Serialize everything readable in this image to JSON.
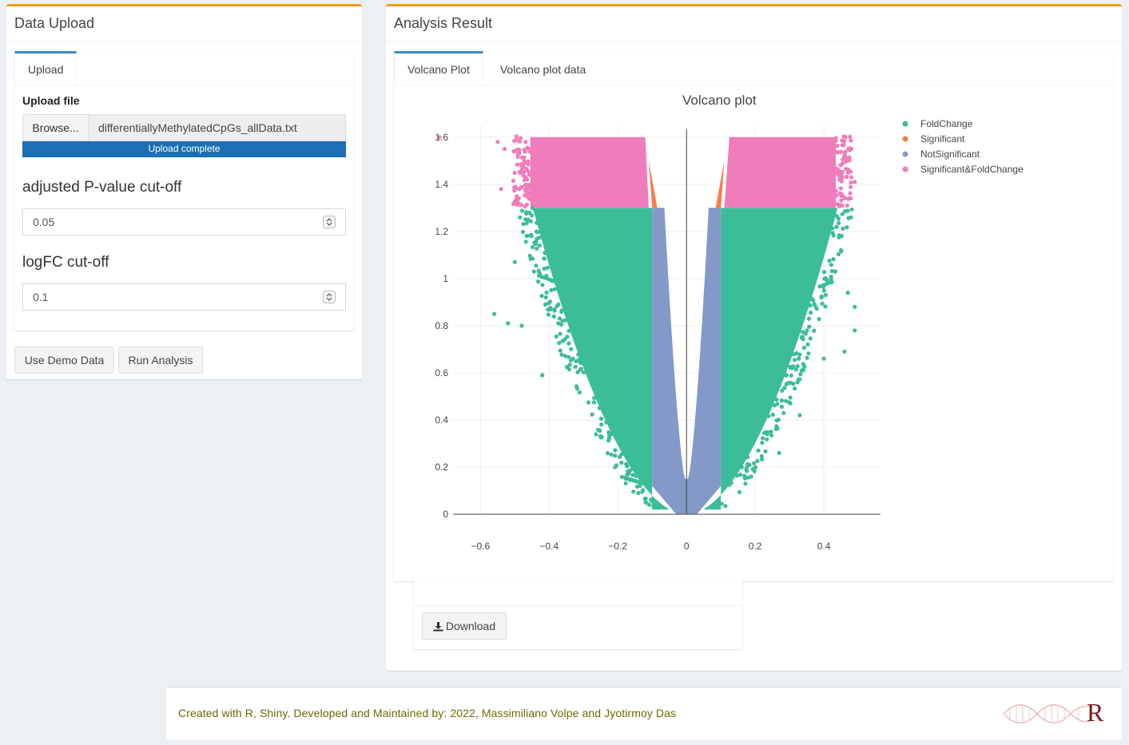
{
  "left_panel": {
    "title": "Data Upload",
    "tab_label": "Upload",
    "upload_label": "Upload file",
    "browse_label": "Browse...",
    "file_name": "differentiallyMethylatedCpGs_allData.txt",
    "progress_text": "Upload complete",
    "progress_value": 1.0,
    "pvalue_label": "adjusted P-value cut-off",
    "pvalue_value": "0.05",
    "logfc_label": "logFC cut-off",
    "logfc_value": "0.1",
    "demo_button": "Use Demo Data",
    "run_button": "Run Analysis"
  },
  "right_panel": {
    "title": "Analysis Result",
    "tabs": [
      {
        "label": "Volcano Plot",
        "active": true
      },
      {
        "label": "Volcano plot data",
        "active": false
      }
    ],
    "download_button": "Download"
  },
  "footer": {
    "text": "Created with R, Shiny. Developed and Maintained by: 2022, Massimiliano Volpe and Jyotirmoy Das",
    "logo_letter": "R"
  },
  "colors": {
    "box_accent": "#f39c12",
    "tab_accent": "#3c8dbc",
    "progress": "#1c6fb5",
    "footer_text": "#6b6b00",
    "logo": "#7a1a1a"
  },
  "chart_data": {
    "type": "scatter",
    "title": "Volcano plot",
    "xlabel": "",
    "ylabel": "",
    "xlim": [
      -0.6,
      0.5
    ],
    "ylim": [
      0,
      1.65
    ],
    "x_ticks": [
      "−0.6",
      "−0.4",
      "−0.2",
      "0",
      "0.2",
      "0.4"
    ],
    "x_tick_values": [
      -0.6,
      -0.4,
      -0.2,
      0,
      0.2,
      0.4
    ],
    "y_ticks": [
      "0",
      "0.2",
      "0.4",
      "0.6",
      "0.8",
      "1",
      "1.2",
      "1.4",
      "1.6"
    ],
    "y_tick_values": [
      0,
      0.2,
      0.4,
      0.6,
      0.8,
      1.0,
      1.2,
      1.4,
      1.6
    ],
    "grid": true,
    "legend_position": "top-right",
    "thresholds": {
      "logfc": 0.1,
      "neglog10_p": 1.3
    },
    "series": [
      {
        "name": "FoldChange",
        "color": "#3bbd98",
        "region": {
          "x_abs_min": 0.1,
          "y_max": 1.3
        }
      },
      {
        "name": "Significant",
        "color": "#f97c4a",
        "region": {
          "x_abs_max": 0.1,
          "y_min": 1.3
        }
      },
      {
        "name": "NotSignificant",
        "color": "#8399c8",
        "region": {
          "x_abs_max": 0.1,
          "y_max": 1.3
        }
      },
      {
        "name": "Significant&FoldChange",
        "color": "#f07cbc",
        "region": {
          "x_abs_min": 0.1,
          "y_min": 1.3
        }
      }
    ],
    "outliers": [
      {
        "series": "FoldChange",
        "points": [
          [
            -0.56,
            0.85
          ],
          [
            -0.52,
            0.81
          ],
          [
            -0.42,
            0.59
          ],
          [
            0.47,
            0.94
          ],
          [
            0.49,
            0.88
          ],
          [
            0.49,
            0.78
          ],
          [
            0.46,
            0.69
          ],
          [
            0.4,
            0.66
          ],
          [
            0.33,
            0.42
          ],
          [
            0.27,
            0.26
          ],
          [
            -0.5,
            1.07
          ],
          [
            -0.48,
            0.8
          ],
          [
            0.45,
            1.12
          ]
        ]
      },
      {
        "series": "Significant&FoldChange",
        "points": [
          [
            -0.72,
            1.6
          ],
          [
            -0.55,
            1.58
          ],
          [
            -0.53,
            1.55
          ],
          [
            -0.54,
            1.38
          ],
          [
            0.48,
            1.55
          ],
          [
            0.48,
            1.43
          ],
          [
            0.49,
            1.41
          ]
        ]
      }
    ]
  }
}
